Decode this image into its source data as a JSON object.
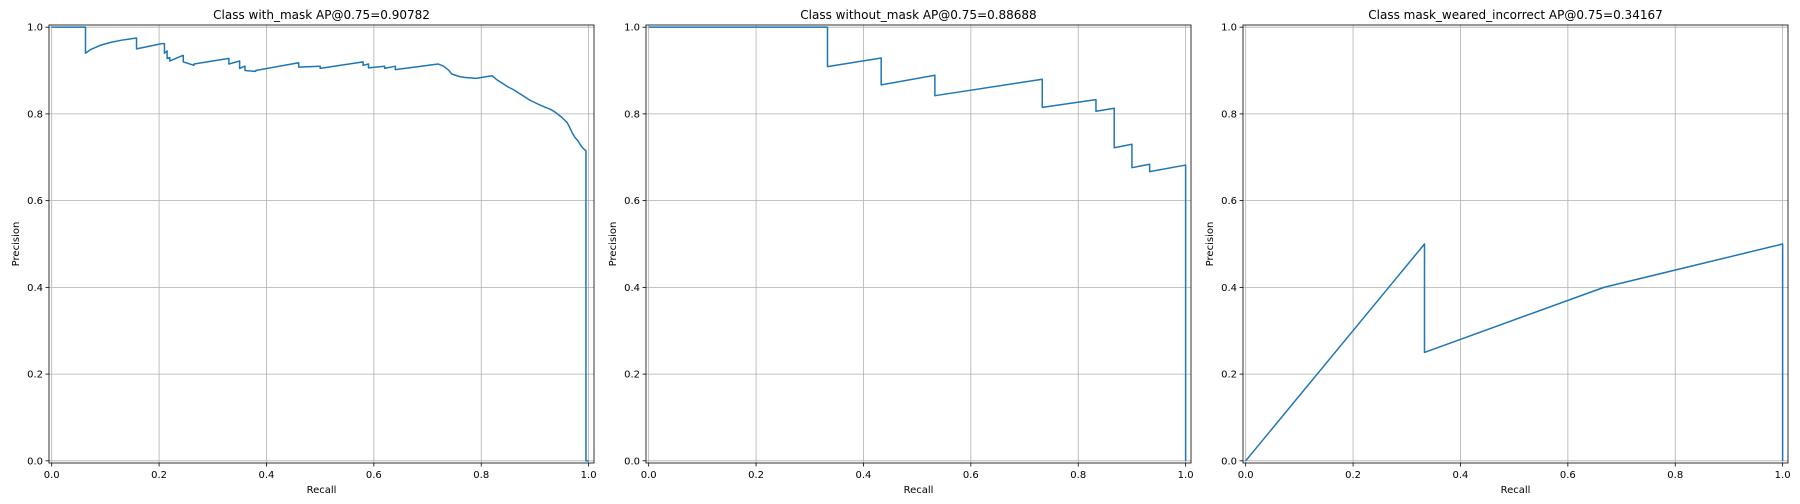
{
  "chart_data": [
    {
      "type": "line",
      "title": "Class with_mask AP@0.75=0.90782",
      "xlabel": "Recall",
      "ylabel": "Precision",
      "xlim": [
        -0.005,
        1.01
      ],
      "ylim": [
        -0.005,
        1.005
      ],
      "xticks": [
        "0.0",
        "0.2",
        "0.4",
        "0.6",
        "0.8",
        "1.0"
      ],
      "yticks": [
        "0.0",
        "0.2",
        "0.4",
        "0.6",
        "0.8",
        "1.0"
      ],
      "grid": true,
      "line_color": "#1f77b4",
      "series": [
        {
          "x": [
            0.0,
            0.063,
            0.063,
            0.072,
            0.09,
            0.11,
            0.13,
            0.158,
            0.158,
            0.205,
            0.21,
            0.21,
            0.215,
            0.215,
            0.22,
            0.22,
            0.245,
            0.245,
            0.265,
            0.265,
            0.33,
            0.33,
            0.35,
            0.35,
            0.36,
            0.36,
            0.38,
            0.38,
            0.46,
            0.46,
            0.5,
            0.5,
            0.58,
            0.58,
            0.59,
            0.59,
            0.62,
            0.62,
            0.64,
            0.64,
            0.72,
            0.73,
            0.74,
            0.745,
            0.75,
            0.76,
            0.77,
            0.78,
            0.79,
            0.82,
            0.83,
            0.84,
            0.85,
            0.86,
            0.87,
            0.88,
            0.89,
            0.9,
            0.91,
            0.92,
            0.93,
            0.94,
            0.95,
            0.96,
            0.965,
            0.97,
            0.975,
            0.98,
            0.985,
            0.99,
            0.995,
            0.995,
            1.0
          ],
          "y": [
            1.0,
            1.0,
            0.94,
            0.948,
            0.958,
            0.965,
            0.97,
            0.975,
            0.95,
            0.962,
            0.962,
            0.94,
            0.945,
            0.928,
            0.93,
            0.922,
            0.935,
            0.92,
            0.912,
            0.915,
            0.928,
            0.915,
            0.922,
            0.905,
            0.91,
            0.9,
            0.898,
            0.9,
            0.918,
            0.908,
            0.91,
            0.905,
            0.92,
            0.912,
            0.915,
            0.906,
            0.91,
            0.905,
            0.91,
            0.902,
            0.915,
            0.91,
            0.9,
            0.892,
            0.89,
            0.886,
            0.884,
            0.883,
            0.882,
            0.888,
            0.878,
            0.87,
            0.862,
            0.856,
            0.848,
            0.84,
            0.832,
            0.826,
            0.82,
            0.815,
            0.81,
            0.802,
            0.792,
            0.78,
            0.768,
            0.755,
            0.745,
            0.738,
            0.728,
            0.72,
            0.715,
            0.0,
            0.0
          ]
        }
      ]
    },
    {
      "type": "line",
      "title": "Class without_mask AP@0.75=0.88688",
      "xlabel": "Recall",
      "ylabel": "Precision",
      "xlim": [
        -0.005,
        1.01
      ],
      "ylim": [
        -0.005,
        1.005
      ],
      "xticks": [
        "0.0",
        "0.2",
        "0.4",
        "0.6",
        "0.8",
        "1.0"
      ],
      "yticks": [
        "0.0",
        "0.2",
        "0.4",
        "0.6",
        "0.8",
        "1.0"
      ],
      "grid": true,
      "line_color": "#1f77b4",
      "series": [
        {
          "x": [
            0.0,
            0.333,
            0.333,
            0.433,
            0.433,
            0.533,
            0.533,
            0.733,
            0.733,
            0.833,
            0.833,
            0.867,
            0.867,
            0.9,
            0.9,
            0.933,
            0.933,
            1.0,
            1.0
          ],
          "y": [
            1.0,
            1.0,
            0.909,
            0.929,
            0.867,
            0.889,
            0.842,
            0.88,
            0.815,
            0.833,
            0.806,
            0.813,
            0.722,
            0.73,
            0.676,
            0.684,
            0.667,
            0.682,
            0.0
          ]
        }
      ]
    },
    {
      "type": "line",
      "title": "Class mask_weared_incorrect AP@0.75=0.34167",
      "xlabel": "Recall",
      "ylabel": "Precision",
      "xlim": [
        -0.005,
        1.01
      ],
      "ylim": [
        -0.005,
        1.005
      ],
      "xticks": [
        "0.0",
        "0.2",
        "0.4",
        "0.6",
        "0.8",
        "1.0"
      ],
      "yticks": [
        "0.0",
        "0.2",
        "0.4",
        "0.6",
        "0.8",
        "1.0"
      ],
      "grid": true,
      "line_color": "#1f77b4",
      "series": [
        {
          "x": [
            0.0,
            0.333,
            0.333,
            0.667,
            1.0,
            1.0
          ],
          "y": [
            0.0,
            0.5,
            0.25,
            0.4,
            0.5,
            0.0
          ]
        }
      ]
    }
  ]
}
